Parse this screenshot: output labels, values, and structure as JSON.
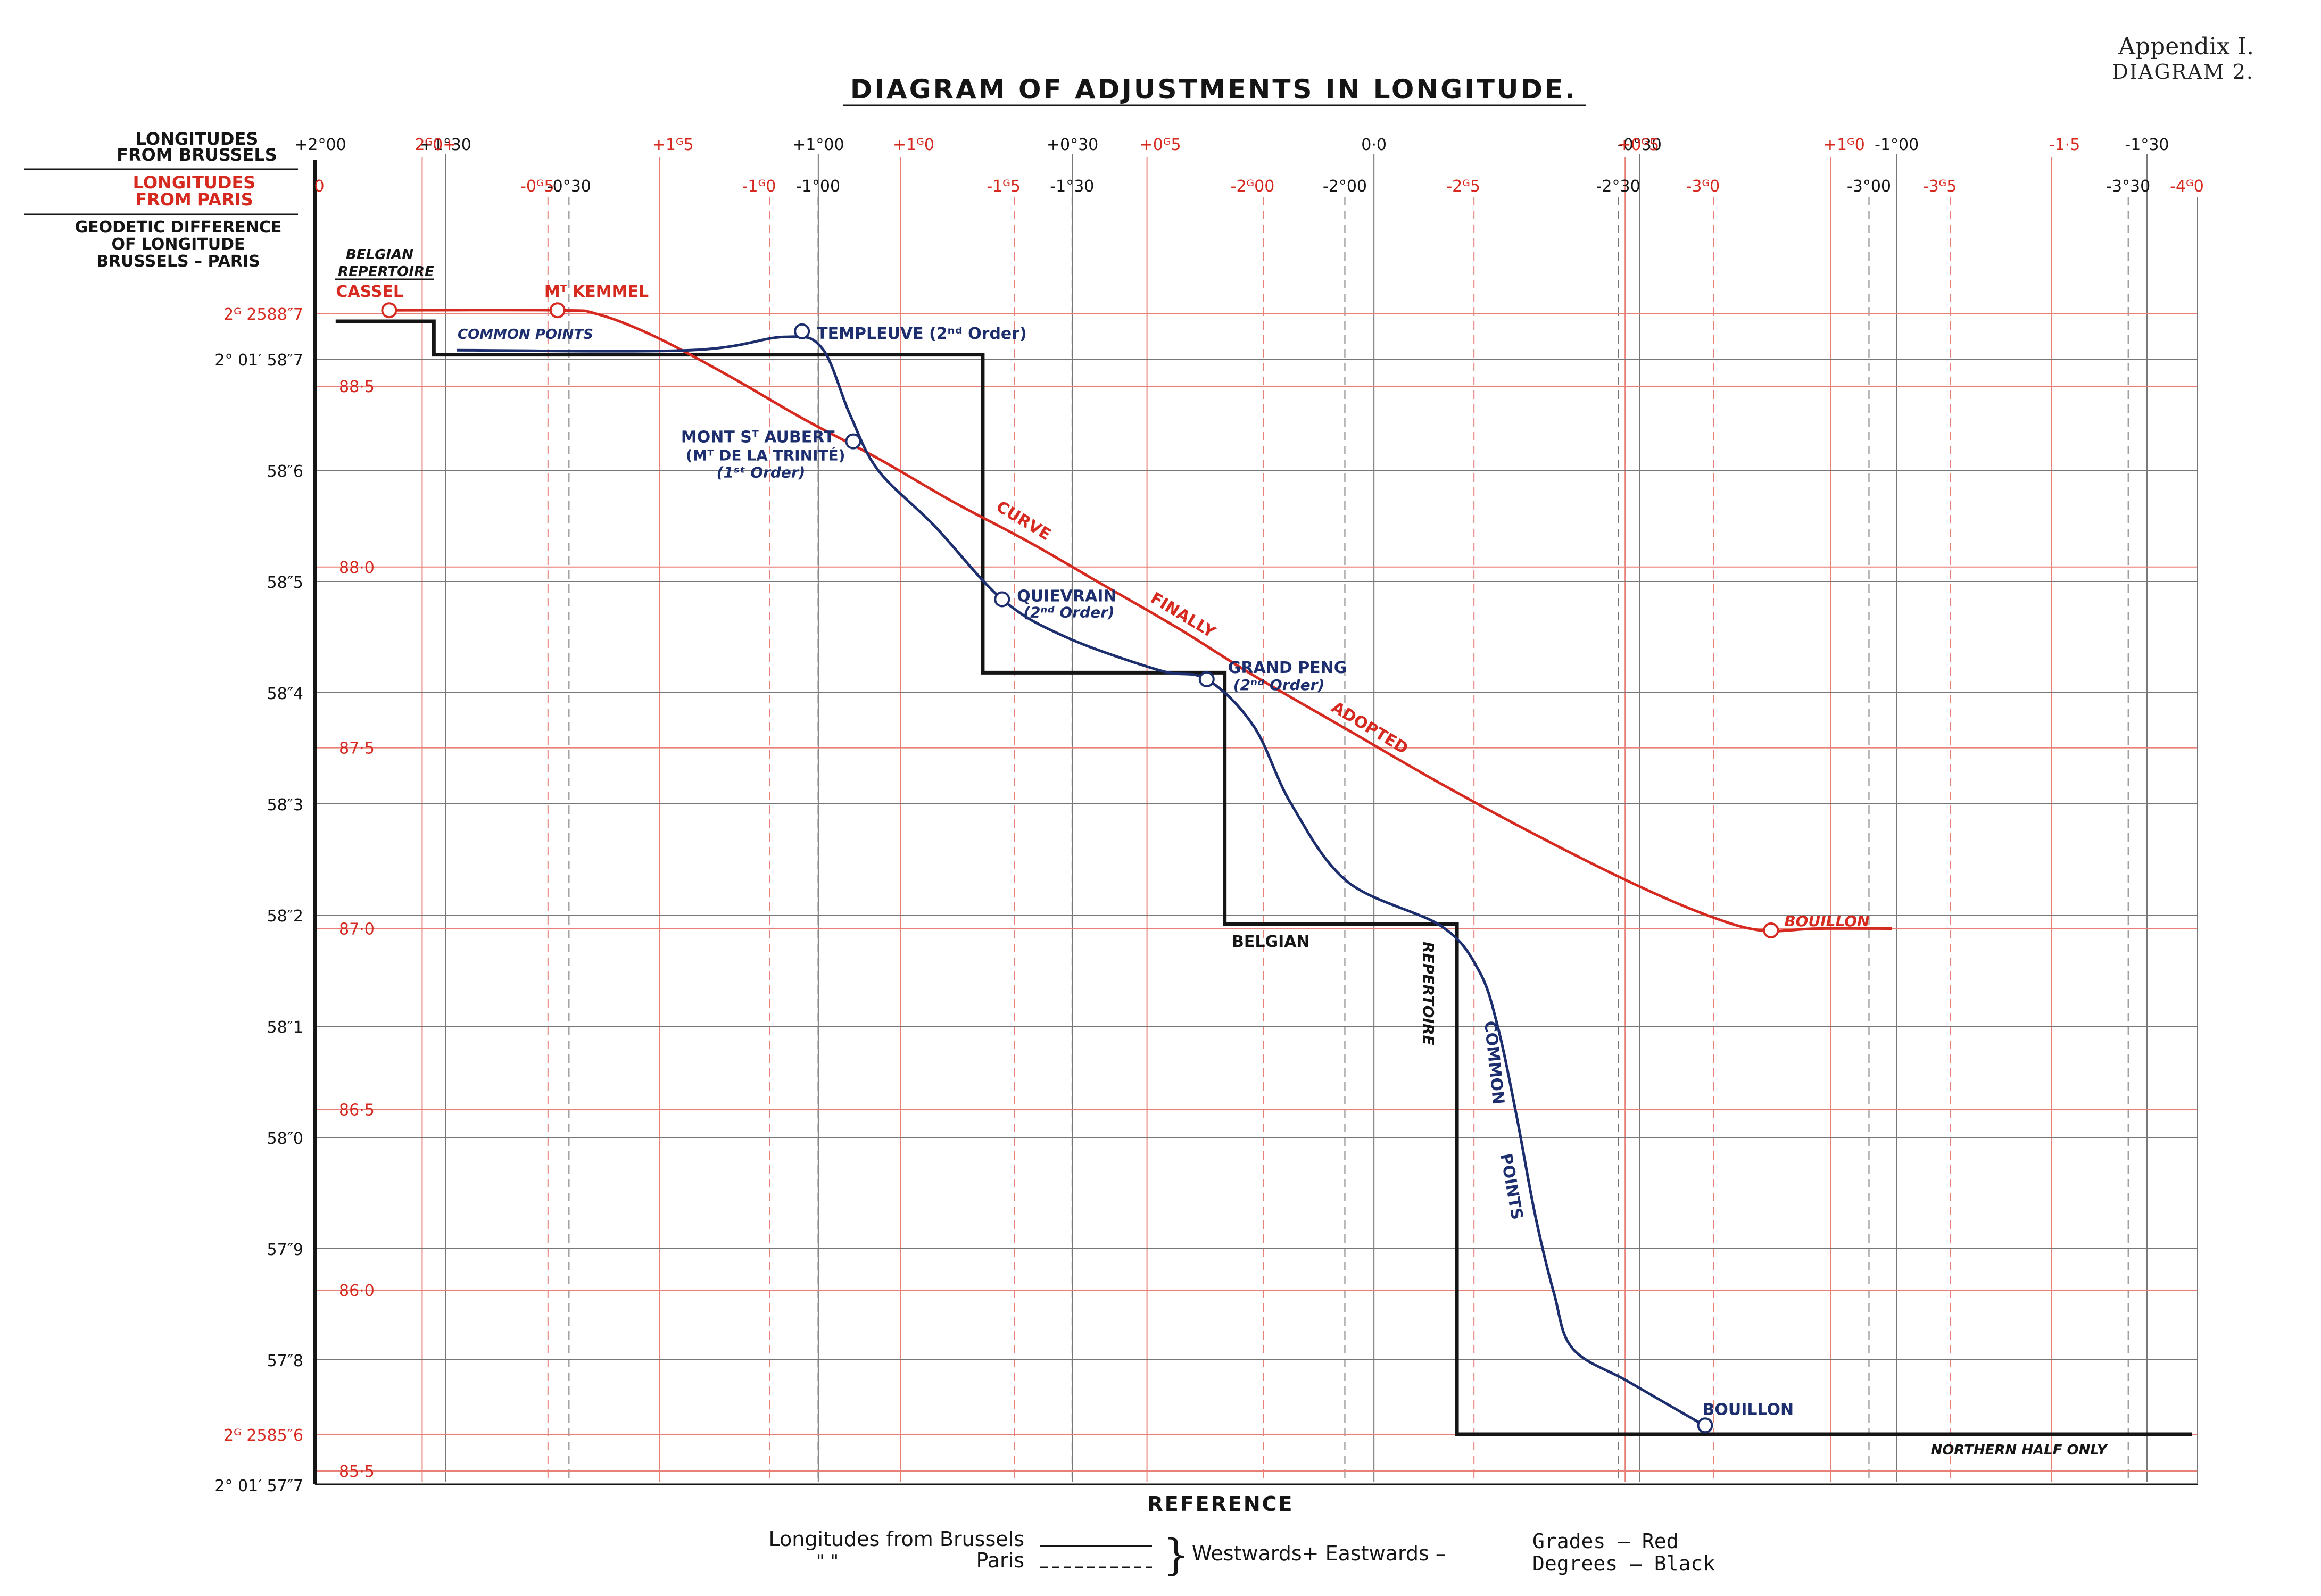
{
  "appendix": {
    "line1": "Appendix I.",
    "line2": "DIAGRAM 2."
  },
  "chart_data": {
    "type": "line",
    "title": "DIAGRAM OF ADJUSTMENTS IN LONGITUDE.",
    "xlabel": "REFERENCE",
    "colors": {
      "black": "#151515",
      "red": "#d62a20",
      "blue": "#1d2e6e",
      "grid_red": "#e88078",
      "grid_black": "#777777"
    },
    "x_axis_titles": {
      "brussels": [
        "LONGITUDES",
        "FROM BRUSSELS"
      ],
      "paris": [
        "LONGITUDES",
        "FROM PARIS"
      ],
      "geodetic": [
        "GEODETIC DIFFERENCE",
        "OF LONGITUDE",
        "BRUSSELS – PARIS"
      ]
    },
    "top_ticks_brussels_black": [
      {
        "x": 0.0,
        "label": "+2°00"
      },
      {
        "x": 0.0695,
        "label": "+1°30"
      },
      {
        "x": 0.2681,
        "label": "+1°00"
      },
      {
        "x": 0.4035,
        "label": "+0°30"
      },
      {
        "x": 0.5641,
        "label": "0·0"
      },
      {
        "x": 0.7056,
        "label": "-0°30"
      },
      {
        "x": 0.8426,
        "label": "-1°00"
      },
      {
        "x": 0.9759,
        "label": "-1°30"
      }
    ],
    "top_ticks_brussels_red": [
      {
        "x": 0.0571,
        "label": "2ᴳ0+"
      },
      {
        "x": 0.1836,
        "label": "+1ᴳ5"
      },
      {
        "x": 0.3118,
        "label": "+1ᴳ0"
      },
      {
        "x": 0.4432,
        "label": "+0ᴳ5"
      },
      {
        "x": 0.6979,
        "label": "+0ᴳ5"
      },
      {
        "x": 0.8075,
        "label": "+1ᴳ0"
      },
      {
        "x": 0.9249,
        "label": "-1·5"
      }
    ],
    "paris_ticks_red": [
      {
        "x": 0.0,
        "label": "0"
      },
      {
        "x": 0.1241,
        "label": "-0ᴳ5"
      },
      {
        "x": 0.2422,
        "label": "-1ᴳ0"
      },
      {
        "x": 0.3725,
        "label": "-1ᴳ5"
      },
      {
        "x": 0.5051,
        "label": "-2ᴳ00"
      },
      {
        "x": 0.6174,
        "label": "-2ᴳ5"
      },
      {
        "x": 0.745,
        "label": "-3ᴳ0"
      },
      {
        "x": 0.8712,
        "label": "-3ᴳ5"
      },
      {
        "x": 1.0,
        "label": "-4ᴳ0"
      }
    ],
    "paris_ticks_black": [
      {
        "x": 0.1353,
        "label": "-0°30"
      },
      {
        "x": 0.268,
        "label": "-1°00"
      },
      {
        "x": 0.4033,
        "label": "-1°30"
      },
      {
        "x": 0.5486,
        "label": "-2°00"
      },
      {
        "x": 0.6942,
        "label": "-2°30"
      },
      {
        "x": 0.8278,
        "label": "-3°00"
      },
      {
        "x": 0.9659,
        "label": "-3°30"
      }
    ],
    "y_ticks_seconds": [
      {
        "y": 58.7,
        "label": "2° 01′ 58″7"
      },
      {
        "y": 58.6,
        "label": "58″6"
      },
      {
        "y": 58.5,
        "label": "58″5"
      },
      {
        "y": 58.4,
        "label": "58″4"
      },
      {
        "y": 58.3,
        "label": "58″3"
      },
      {
        "y": 58.2,
        "label": "58″2"
      },
      {
        "y": 58.1,
        "label": "58″1"
      },
      {
        "y": 58.0,
        "label": "58″0"
      },
      {
        "y": 57.9,
        "label": "57″9"
      },
      {
        "y": 57.8,
        "label": "57″8"
      },
      {
        "y": 57.7,
        "label": "2° 01′ 57″7"
      }
    ],
    "y_ticks_grades": [
      {
        "y": 88.7,
        "label": "2ᴳ 2588″7"
      },
      {
        "y": 88.5,
        "label": "88·5"
      },
      {
        "y": 88.0,
        "label": "88·0"
      },
      {
        "y": 87.5,
        "label": "87·5"
      },
      {
        "y": 87.0,
        "label": "87·0"
      },
      {
        "y": 86.5,
        "label": "86·5"
      },
      {
        "y": 86.0,
        "label": "86·0"
      },
      {
        "y": 85.6,
        "label": "2ᴳ 2585″6"
      },
      {
        "y": 85.5,
        "label": "85·5"
      }
    ],
    "series": [
      {
        "name": "BELGIAN REPERTOIRE",
        "color": "black",
        "style": "step",
        "points": [
          [
            0.011,
            58.734
          ],
          [
            0.0633,
            58.734
          ],
          [
            0.0633,
            58.704
          ],
          [
            0.3557,
            58.704
          ],
          [
            0.3557,
            58.418
          ],
          [
            0.4846,
            58.418
          ],
          [
            0.4846,
            58.192
          ],
          [
            0.6083,
            58.192
          ],
          [
            0.6083,
            57.733
          ],
          [
            1.0,
            57.733
          ]
        ]
      },
      {
        "name": "CURVE FINALLY ADOPTED",
        "color": "red",
        "style": "smooth",
        "points": [
          [
            0.0395,
            88.71
          ],
          [
            0.1292,
            88.71
          ],
          [
            0.15,
            88.7
          ],
          [
            0.18,
            88.64
          ],
          [
            0.22,
            88.53
          ],
          [
            0.26,
            88.41
          ],
          [
            0.3,
            88.3
          ],
          [
            0.34,
            88.18
          ],
          [
            0.38,
            88.07
          ],
          [
            0.42,
            87.95
          ],
          [
            0.46,
            87.83
          ],
          [
            0.5,
            87.7
          ],
          [
            0.55,
            87.55
          ],
          [
            0.6,
            87.4
          ],
          [
            0.65,
            87.26
          ],
          [
            0.7,
            87.13
          ],
          [
            0.74,
            87.04
          ],
          [
            0.77,
            86.995
          ],
          [
            0.8,
            87.0
          ],
          [
            0.84,
            87.0
          ]
        ]
      },
      {
        "name": "COMMON POINTS",
        "color": "blue",
        "style": "smooth",
        "points": [
          [
            0.0755,
            58.708
          ],
          [
            0.2,
            58.708
          ],
          [
            0.25,
            58.72
          ],
          [
            0.27,
            58.71
          ],
          [
            0.285,
            58.65
          ],
          [
            0.3,
            58.6
          ],
          [
            0.33,
            58.55
          ],
          [
            0.366,
            58.484
          ],
          [
            0.4,
            58.45
          ],
          [
            0.45,
            58.42
          ],
          [
            0.475,
            58.412
          ],
          [
            0.5,
            58.37
          ],
          [
            0.52,
            58.3
          ],
          [
            0.55,
            58.23
          ],
          [
            0.6,
            58.19
          ],
          [
            0.62,
            58.15
          ],
          [
            0.63,
            58.1
          ],
          [
            0.64,
            58.02
          ],
          [
            0.65,
            57.93
          ],
          [
            0.66,
            57.86
          ],
          [
            0.67,
            57.81
          ],
          [
            0.7,
            57.78
          ],
          [
            0.74,
            57.741
          ]
        ]
      }
    ],
    "dashed_extension": {
      "points": [
        [
          0.855,
          57.733
        ],
        [
          0.9635,
          57.733
        ]
      ],
      "label": "NORTHERN HALF ONLY"
    },
    "stations": [
      {
        "name": "CASSEL",
        "series": "red",
        "x": 0.0395,
        "y": 88.71
      },
      {
        "name": "Mᵀ KEMMEL",
        "series": "red",
        "x": 0.1292,
        "y": 88.71
      },
      {
        "name": "BOUILLON",
        "series": "red",
        "x": 0.7756,
        "y": 86.995
      },
      {
        "name": "TEMPLEUVE (2ⁿᵈ Order)",
        "series": "blue",
        "x": 0.2594,
        "y": 58.725
      },
      {
        "name": "MONT Sᵀ AUBERT",
        "sub": [
          "(Mᵀ DE LA TRINITÉ)",
          "(1ˢᵗ Order)"
        ],
        "series": "blue",
        "x": 0.2867,
        "y": 58.626
      },
      {
        "name": "QUIEVRAIN",
        "sub": [
          "(2ⁿᵈ Order)"
        ],
        "series": "blue",
        "x": 0.366,
        "y": 58.484
      },
      {
        "name": "GRAND PENG",
        "sub": [
          "(2ⁿᵈ Order)"
        ],
        "series": "blue",
        "x": 0.475,
        "y": 58.412
      },
      {
        "name": "BOUILLON",
        "series": "blue",
        "x": 0.7405,
        "y": 57.741
      }
    ],
    "annotations": {
      "belgian_repertoire_top": [
        "BELGIAN",
        "REPERTOIRE"
      ],
      "common_points_top": "COMMON POINTS",
      "curve_words": [
        "CURVE",
        "FINALLY",
        "ADOPTED"
      ],
      "belgian_bottom": "BELGIAN",
      "repertoire_bottom": "REPERTOIRE",
      "common_points_bottom": [
        "COMMON",
        "POINTS"
      ]
    },
    "legend": {
      "brussels_label": "Longitudes from Brussels",
      "paris_label": "Paris",
      "ditto_marks": "\"     \"",
      "brace": "}",
      "direction": "Westwards+ Eastwards –",
      "grades": "Grades — Red",
      "degrees": "Degrees — Black"
    }
  }
}
